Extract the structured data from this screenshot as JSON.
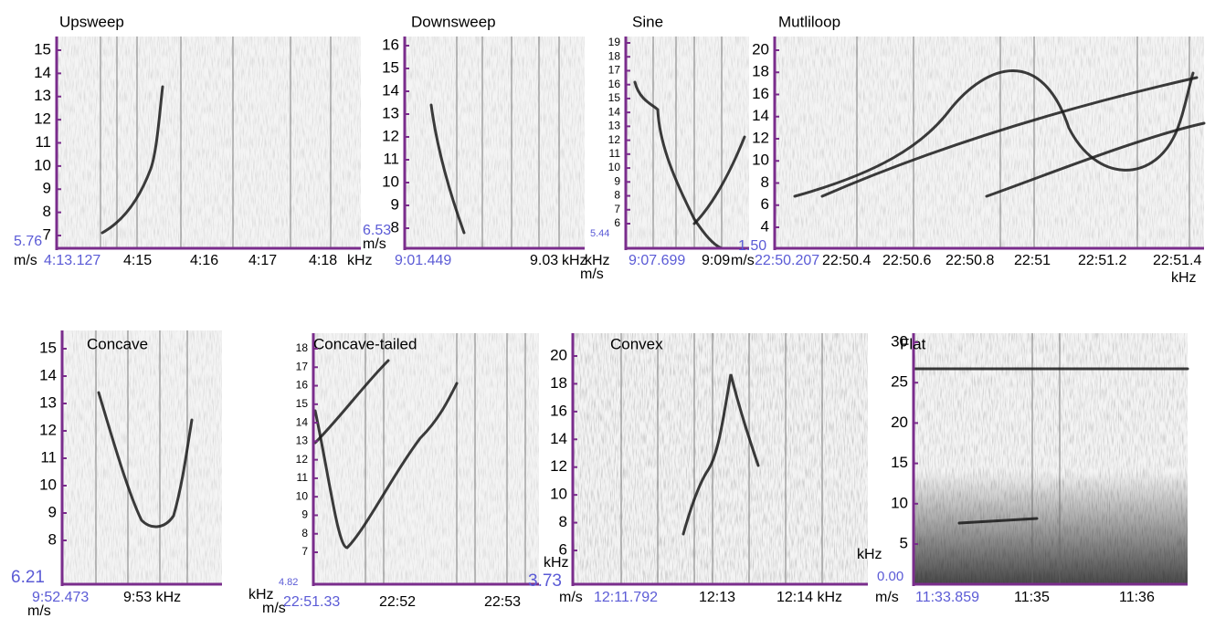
{
  "panels": [
    {
      "title": "Upsweep",
      "yticks": [
        15,
        14,
        13,
        12,
        11,
        10,
        9,
        8,
        7
      ],
      "labels": [
        "5.76",
        "m/s",
        "4:13.127",
        "4:15",
        "4:16",
        "4:17",
        "4:18",
        "kHz"
      ]
    },
    {
      "title": "Downsweep",
      "yticks": [
        16,
        15,
        14,
        13,
        12,
        11,
        10,
        9,
        8
      ],
      "labels": [
        "6.53",
        "m/s",
        "9:01.449",
        "9.03",
        "kHz"
      ]
    },
    {
      "title": "Sine",
      "yticks": [
        19,
        18,
        17,
        16,
        15,
        14,
        13,
        12,
        11,
        10,
        9,
        8,
        7,
        6
      ],
      "labels": [
        "5.44",
        "kHz",
        "m/s",
        "9:07.699",
        "9:09",
        "m/s"
      ]
    },
    {
      "title": "Mutliloop",
      "yticks": [
        20,
        18,
        16,
        14,
        12,
        10,
        8,
        6,
        4
      ],
      "labels": [
        "1.50",
        "22:50.207",
        "22:50.4",
        "22:50.6",
        "22:50.8",
        "22:51",
        "22:51.2",
        "22:51.4",
        "kHz"
      ]
    },
    {
      "title": "Concave",
      "yticks": [
        15,
        14,
        13,
        12,
        11,
        10,
        9,
        8
      ],
      "labels": [
        "6.21",
        "9:52.473",
        "9:53 kHz",
        "m/s"
      ]
    },
    {
      "title": "Concave-tailed",
      "yticks": [
        18,
        17,
        16,
        15,
        14,
        13,
        12,
        11,
        10,
        9,
        8,
        7
      ],
      "labels": [
        "4.82",
        "kHz",
        "m/s",
        "22:51.33",
        "22:52",
        "22:53"
      ]
    },
    {
      "title": "Convex",
      "yticks": [
        20,
        18,
        16,
        14,
        12,
        10,
        8,
        6
      ],
      "labels": [
        "kHz",
        "3.73",
        "m/s",
        "12:11.792",
        "12:13",
        "12:14 kHz"
      ]
    },
    {
      "title": "Flat",
      "yticks": [
        30,
        25,
        20,
        15,
        10,
        5
      ],
      "labels": [
        "kHz",
        "0.00",
        "m/s",
        "11:33.859",
        "11:35",
        "11:36"
      ]
    }
  ]
}
